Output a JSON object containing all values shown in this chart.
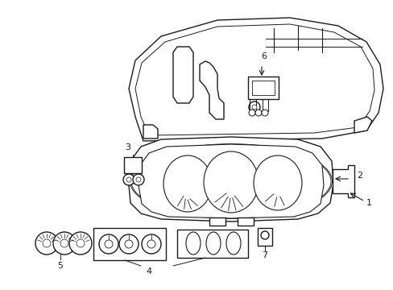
{
  "background_color": "#ffffff",
  "line_color": "#1a1a1a",
  "line_width": 1.0,
  "fig_width": 4.89,
  "fig_height": 3.6,
  "dpi": 100,
  "label_fontsize": 8,
  "label_fontweight": "normal",
  "label_fontstyle": "normal"
}
